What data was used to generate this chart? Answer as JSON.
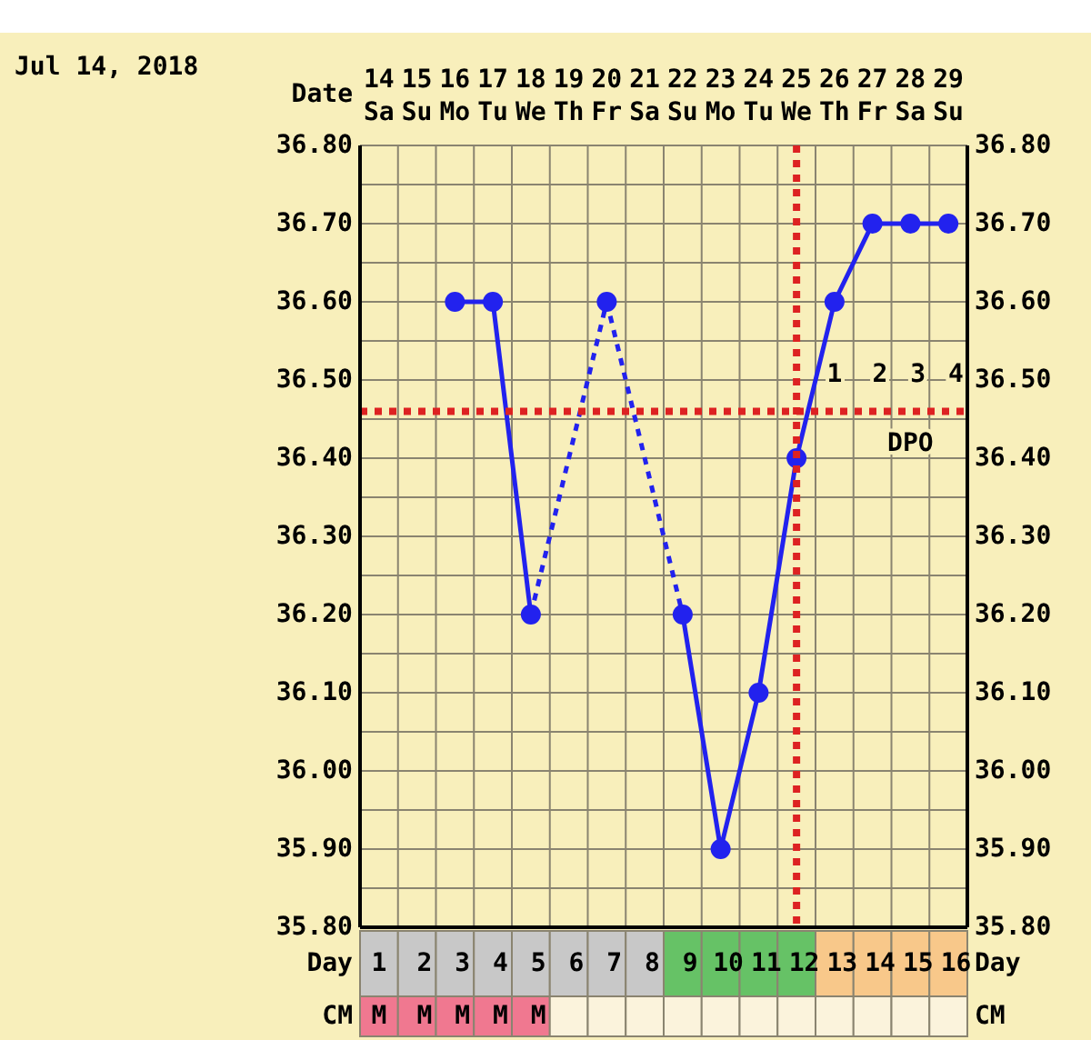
{
  "chart_data": {
    "type": "line",
    "title": "Jul 14, 2018",
    "xlabel": "Date",
    "categories": [
      "14 Sa",
      "15 Su",
      "16 Mo",
      "17 Tu",
      "18 We",
      "19 Th",
      "20 Fr",
      "21 Sa",
      "22 Su",
      "23 Mo",
      "24 Tu",
      "25 We",
      "26 Th",
      "27 Fr",
      "28 Sa",
      "29 Su"
    ],
    "series": [
      {
        "color": "#2222ee",
        "values": [
          null,
          null,
          36.6,
          36.6,
          36.2,
          null,
          36.6,
          null,
          36.2,
          35.9,
          36.1,
          36.4,
          36.6,
          36.7,
          36.7,
          36.7
        ]
      }
    ],
    "ylim": [
      35.8,
      36.8
    ],
    "yticks": [
      {
        "value": 35.8,
        "label": "35.80"
      },
      {
        "value": 35.85,
        "label": null
      },
      {
        "value": 35.9,
        "label": "35.90"
      },
      {
        "value": 35.95,
        "label": null
      },
      {
        "value": 36.0,
        "label": "36.00"
      },
      {
        "value": 36.05,
        "label": null
      },
      {
        "value": 36.1,
        "label": "36.10"
      },
      {
        "value": 36.15,
        "label": null
      },
      {
        "value": 36.2,
        "label": "36.20"
      },
      {
        "value": 36.25,
        "label": null
      },
      {
        "value": 36.3,
        "label": "36.30"
      },
      {
        "value": 36.35,
        "label": null
      },
      {
        "value": 36.4,
        "label": "36.40"
      },
      {
        "value": 36.45,
        "label": null
      },
      {
        "value": 36.5,
        "label": "36.50"
      },
      {
        "value": 36.55,
        "label": null
      },
      {
        "value": 36.6,
        "label": "36.60"
      },
      {
        "value": 36.65,
        "label": null
      },
      {
        "value": 36.7,
        "label": "36.70"
      },
      {
        "value": 36.75,
        "label": null
      },
      {
        "value": 36.8,
        "label": "36.80"
      }
    ],
    "y2lim": [
      35.8,
      36.8
    ],
    "y2ticks": [
      {
        "value": 35.8,
        "label": "35.80"
      },
      {
        "value": 35.9,
        "label": "35.90"
      },
      {
        "value": 36.0,
        "label": "36.00"
      },
      {
        "value": 36.1,
        "label": "36.10"
      },
      {
        "value": 36.2,
        "label": "36.20"
      },
      {
        "value": 36.3,
        "label": "36.30"
      },
      {
        "value": 36.4,
        "label": "36.40"
      },
      {
        "value": 36.5,
        "label": "36.50"
      },
      {
        "value": 36.6,
        "label": "36.60"
      },
      {
        "value": 36.7,
        "label": "36.70"
      },
      {
        "value": 36.8,
        "label": "36.80"
      }
    ],
    "grid": true,
    "marker": "circle",
    "ref_lines": [
      {
        "axis": "y",
        "value": 36.46,
        "color": "#dd2222",
        "line_style": "dotted"
      },
      {
        "axis": "x",
        "value": "25 We",
        "color": "#dd2222",
        "line_style": "dotted"
      }
    ],
    "annotations": [
      "Day",
      "CM",
      "1 2 3 4",
      "DPO",
      "1 2 3 4 5 6 7 8 9 10 11 12 13 14 15 16",
      "M M M M M"
    ]
  }
}
